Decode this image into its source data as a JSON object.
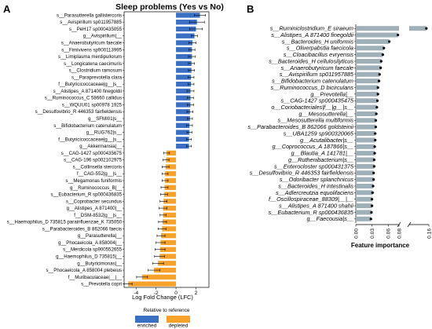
{
  "panel_a_letter": "A",
  "panel_b_letter": "B",
  "chart_data": [
    {
      "type": "bar",
      "orientation": "horizontal",
      "title": "Sleep problems (Yes vs No)",
      "xlabel": "Log Fold Change (LFC)",
      "ylabel": "",
      "xlim": [
        -5.2,
        3.3
      ],
      "xticks": [
        -4,
        -2,
        0,
        2
      ],
      "legend_title": "Relative to reference",
      "legend_position": "bottom",
      "legend": [
        {
          "label": "enriched",
          "color": "#3a6fc4"
        },
        {
          "label": "depleted",
          "color": "#f7a32b"
        }
      ],
      "categories": [
        "s__Parasutterella gallistercoris",
        "s__Avispirillum sp011957885",
        "s__PeH17 sp000435055",
        "g__Avispirillum|__",
        "s__Anaerobutyricum faecale",
        "s__Fimivivens sp900113995",
        "s__Limiplasma merdipullorum",
        "s__Longicatena caecimuris",
        "s__Clostridium ramosum",
        "s__Paraprevotella clara",
        "f__Butyricicoccaceae|g__|s__",
        "s__Alistipes_A 871400 finegoldii",
        "s__Ruminococcus_C 58660 callidus",
        "s__WQUU01 sp00978 1925",
        "s__Desulfovibrio_R 446353 fairfieldensis",
        "g__SFMI01|s__",
        "s__Bifidobacterium catenulatum",
        "g__RUG762|s__",
        "f__Butyricicoccaceae|g__|s__",
        "g__Akkermansia|__",
        "s__CAG-1427 sp000435675",
        "s__CAG-196 sp002102975",
        "s__Collinsella stercoris",
        "f__CAG-552|g__|s__",
        "s__Megamonas funiformis",
        "g__Ruminococcus_B|__",
        "s__Eubacterium_R sp000436835",
        "s__Coprobacter secundus",
        "g__Alistipes_A 871400|__",
        "f__DSM-8532|g__|s__",
        "s__Haemophilus_D 735815 parainfluenzae_K 735050",
        "s__Parabacteroides_B 862066 faecis",
        "g__Parasutterella|__",
        "g__Phocaeicola_A 858004|__",
        "s__Merdicola sp900552655",
        "g__Haemophilus_D 735815|__",
        "g__Butyricimonas|__",
        "s__Phocaeicola_A 858004 plebeius",
        "f__Muribaculaceae|__|__",
        "s__Prevotella copri"
      ],
      "values": [
        2.4,
        2.1,
        2.0,
        1.85,
        1.65,
        1.6,
        1.6,
        1.55,
        1.55,
        1.5,
        1.5,
        1.45,
        1.45,
        1.45,
        1.4,
        1.4,
        1.35,
        1.35,
        1.3,
        1.3,
        -0.95,
        -1.0,
        -1.05,
        -1.1,
        -1.1,
        -1.15,
        -1.2,
        -1.25,
        -1.3,
        -1.3,
        -1.35,
        -1.4,
        -1.5,
        -1.55,
        -1.6,
        -1.65,
        -1.8,
        -2.2,
        -3.4,
        -4.8
      ],
      "errors": [
        0.55,
        0.75,
        0.65,
        0.3,
        0.35,
        0.3,
        0.35,
        0.3,
        0.3,
        0.3,
        0.3,
        0.35,
        0.3,
        0.3,
        0.3,
        0.25,
        0.3,
        0.25,
        0.25,
        0.25,
        0.3,
        0.3,
        0.35,
        0.3,
        0.3,
        0.35,
        0.35,
        0.35,
        0.4,
        0.3,
        0.4,
        0.4,
        0.4,
        0.45,
        0.5,
        0.5,
        0.55,
        0.6,
        0.55,
        0.4
      ]
    },
    {
      "type": "bar",
      "orientation": "horizontal",
      "title": "",
      "xlabel": "Feature importance",
      "ylabel": "",
      "axis_break": [
        0.08,
        0.16
      ],
      "xticks": [
        0.0,
        0.03,
        0.06,
        0.08,
        0.16
      ],
      "xtick_labels": [
        "0.00",
        "0.03",
        "0.06",
        "0.08",
        "0.16"
      ],
      "bar_color": "#9fb0b8",
      "categories": [
        "s__Ruminiclostridium_E siraeum",
        "s__Alistipes_A 871400 finegoldii",
        "s__Bacteroides_H uniformis",
        "s__Oliverpabstia faecicola",
        "s__Cloacibacillus evryensis",
        "s__Bacteroides_H cellulosilyticus",
        "s__Anaerobutyricum faecale",
        "s__Avispirillum sp011957885",
        "s__Bifidobacterium catenulatum",
        "s__Ruminococcus_D bicirculans",
        "g__Prevotella|__",
        "s__CAG-1427 sp000435475",
        "o__Coriobacteriales|f__|g__|s__",
        "g__Mesosutterella|__",
        "s__Mesosutterella multiformis",
        "s__Parabacteroides_B 862066 goldsteinii",
        "s__UBA1259 sp900320065",
        "g__Acutalibacter|s__",
        "g__Coprococcus_A 187866|s__",
        "g__Blautia_A 141781|__",
        "g__Ruthenibacterium|s__",
        "s__Enterocloster sp000431375",
        "s__Desulfovibrio_R 446353 fairfieldensis",
        "s__Odoribacter splanchnicus",
        "s__Bacteroides_H intestinalis",
        "s__Adlercreutzia equolifaciens",
        "f__Oscillospiraceae_88309|__|__",
        "s__Alistipes_A 871400 shahii",
        "s__Eubacterium_R sp000436835",
        "g__Faecousia|s__"
      ],
      "values": [
        0.15,
        0.078,
        0.062,
        0.052,
        0.05,
        0.047,
        0.046,
        0.044,
        0.043,
        0.041,
        0.041,
        0.04,
        0.039,
        0.038,
        0.037,
        0.037,
        0.036,
        0.036,
        0.035,
        0.035,
        0.034,
        0.034,
        0.033,
        0.033,
        0.032,
        0.031,
        0.03,
        0.03,
        0.029,
        0.028
      ]
    }
  ]
}
